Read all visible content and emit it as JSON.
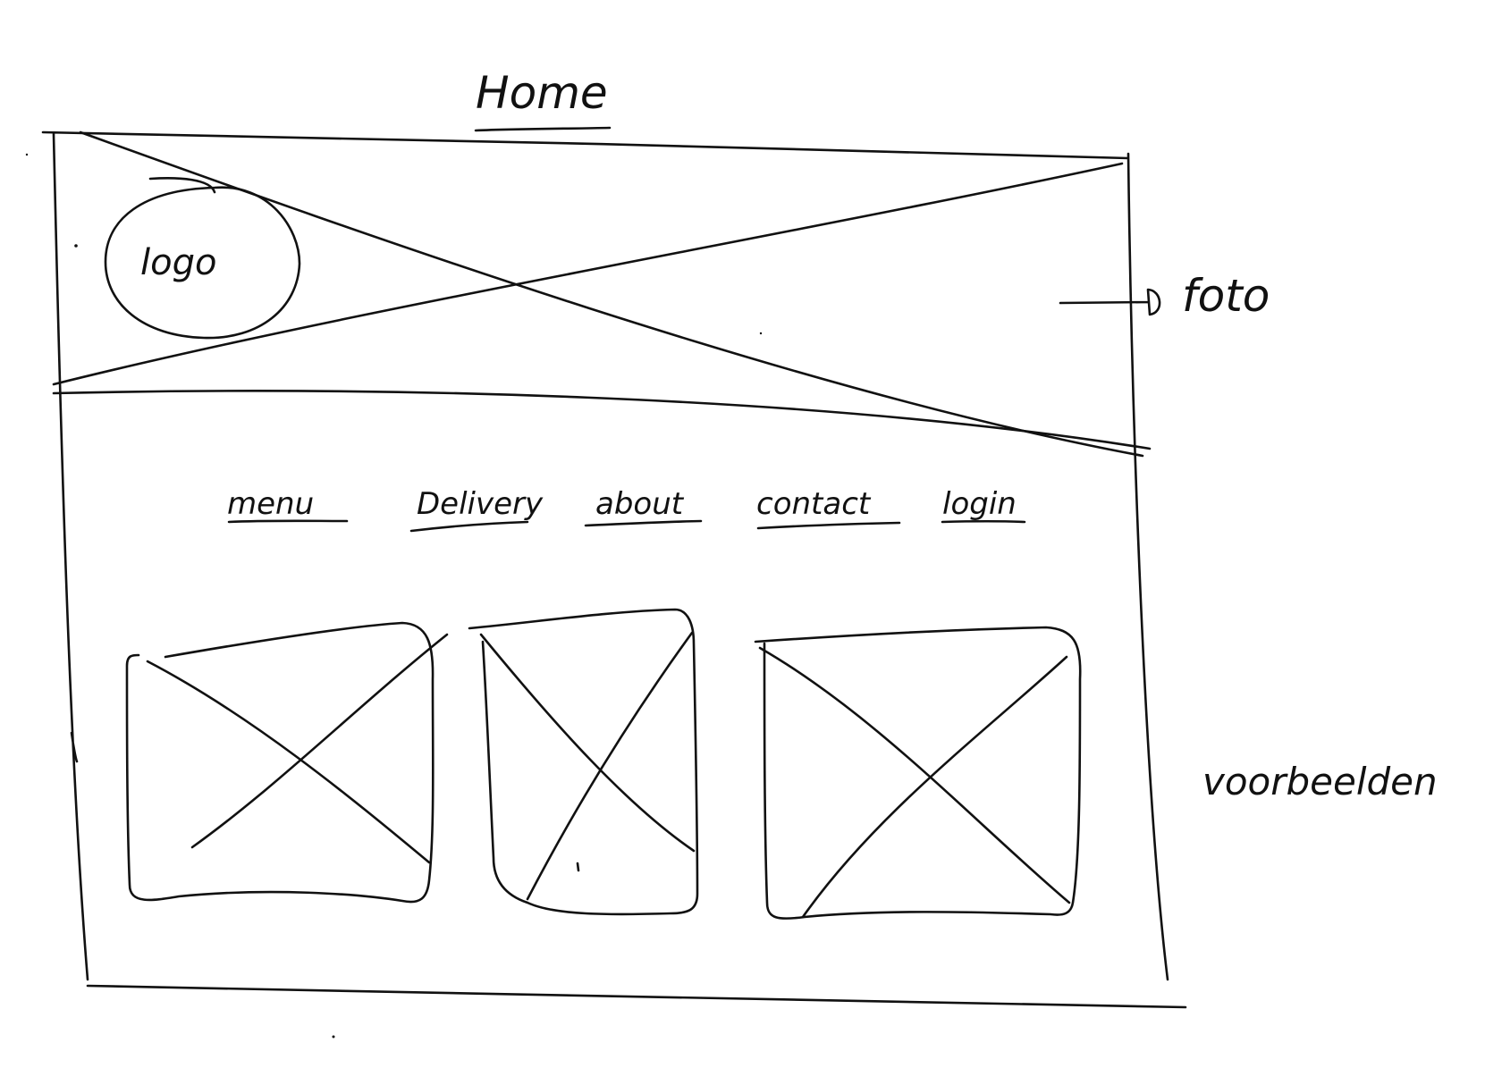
{
  "page": {
    "title": "Home"
  },
  "header": {
    "logo_label": "logo",
    "photo_annotation": "foto"
  },
  "nav": {
    "items": [
      {
        "label": "menu"
      },
      {
        "label": "Delivery"
      },
      {
        "label": "about"
      },
      {
        "label": "contact"
      },
      {
        "label": "login"
      }
    ]
  },
  "examples": {
    "annotation": "voorbeelden",
    "image_count": 3
  },
  "colors": {
    "ink": "#111111",
    "paper": "#ffffff"
  }
}
